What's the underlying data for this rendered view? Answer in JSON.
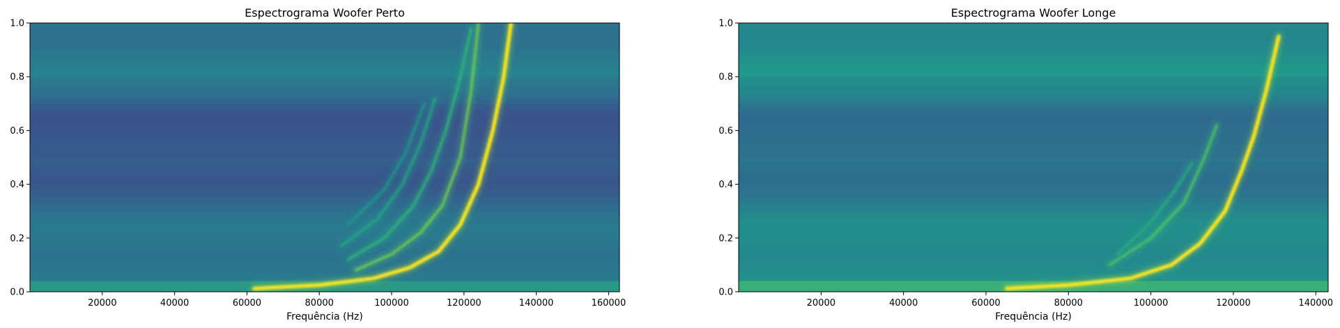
{
  "chart_data": [
    {
      "type": "heatmap",
      "title": "Espectrograma Woofer Perto",
      "xlabel": "Frequência (Hz)",
      "ylabel": "",
      "xlim": [
        0,
        163000
      ],
      "ylim": [
        0,
        1.0
      ],
      "xticks": [
        20000,
        40000,
        60000,
        80000,
        100000,
        120000,
        140000,
        160000
      ],
      "yticks": [
        0.0,
        0.2,
        0.4,
        0.6,
        0.8,
        1.0
      ],
      "xtick_labels": [
        "20000",
        "40000",
        "60000",
        "80000",
        "100000",
        "120000",
        "140000",
        "160000"
      ],
      "ytick_labels": [
        "0.0",
        "0.2",
        "0.4",
        "0.6",
        "0.8",
        "1.0"
      ],
      "colormap": "viridis",
      "background_level": 0.33,
      "harmonic_ridges": [
        {
          "points": [
            [
              62000,
              0.012
            ],
            [
              80000,
              0.025
            ],
            [
              95000,
              0.05
            ],
            [
              105000,
              0.09
            ],
            [
              113000,
              0.15
            ],
            [
              119000,
              0.25
            ],
            [
              124000,
              0.4
            ],
            [
              128000,
              0.6
            ],
            [
              131000,
              0.8
            ],
            [
              133000,
              1.0
            ]
          ],
          "intensity": 1.0
        },
        {
          "points": [
            [
              90000,
              0.08
            ],
            [
              100000,
              0.14
            ],
            [
              108000,
              0.22
            ],
            [
              114000,
              0.32
            ],
            [
              119000,
              0.5
            ],
            [
              122000,
              0.75
            ],
            [
              124000,
              1.0
            ]
          ],
          "intensity": 0.7
        },
        {
          "points": [
            [
              88000,
              0.12
            ],
            [
              98000,
              0.2
            ],
            [
              106000,
              0.32
            ],
            [
              111000,
              0.45
            ],
            [
              115000,
              0.6
            ],
            [
              119000,
              0.8
            ],
            [
              122000,
              0.98
            ]
          ],
          "intensity": 0.5
        },
        {
          "points": [
            [
              86000,
              0.17
            ],
            [
              96000,
              0.27
            ],
            [
              103000,
              0.4
            ],
            [
              108000,
              0.55
            ],
            [
              112000,
              0.72
            ]
          ],
          "intensity": 0.4
        },
        {
          "points": [
            [
              88000,
              0.25
            ],
            [
              98000,
              0.38
            ],
            [
              104000,
              0.52
            ],
            [
              109000,
              0.7
            ]
          ],
          "intensity": 0.3
        }
      ]
    },
    {
      "type": "heatmap",
      "title": "Espectrograma Woofer Longe",
      "xlabel": "Frequência (Hz)",
      "ylabel": "",
      "xlim": [
        0,
        143000
      ],
      "ylim": [
        0,
        1.0
      ],
      "xticks": [
        20000,
        40000,
        60000,
        80000,
        100000,
        120000,
        140000
      ],
      "yticks": [
        0.0,
        0.2,
        0.4,
        0.6,
        0.8,
        1.0
      ],
      "xtick_labels": [
        "20000",
        "40000",
        "60000",
        "80000",
        "100000",
        "120000",
        "140000"
      ],
      "ytick_labels": [
        "0.0",
        "0.2",
        "0.4",
        "0.6",
        "0.8",
        "1.0"
      ],
      "colormap": "viridis",
      "background_level": 0.42,
      "harmonic_ridges": [
        {
          "points": [
            [
              65000,
              0.012
            ],
            [
              80000,
              0.025
            ],
            [
              95000,
              0.05
            ],
            [
              105000,
              0.1
            ],
            [
              112000,
              0.18
            ],
            [
              118000,
              0.3
            ],
            [
              122000,
              0.45
            ],
            [
              125000,
              0.58
            ],
            [
              128000,
              0.75
            ],
            [
              131000,
              0.95
            ]
          ],
          "intensity": 1.0
        },
        {
          "points": [
            [
              90000,
              0.1
            ],
            [
              100000,
              0.2
            ],
            [
              108000,
              0.33
            ],
            [
              113000,
              0.5
            ],
            [
              116000,
              0.62
            ]
          ],
          "intensity": 0.55
        },
        {
          "points": [
            [
              92000,
              0.14
            ],
            [
              100000,
              0.26
            ],
            [
              106000,
              0.38
            ],
            [
              110000,
              0.48
            ]
          ],
          "intensity": 0.35
        }
      ]
    }
  ]
}
